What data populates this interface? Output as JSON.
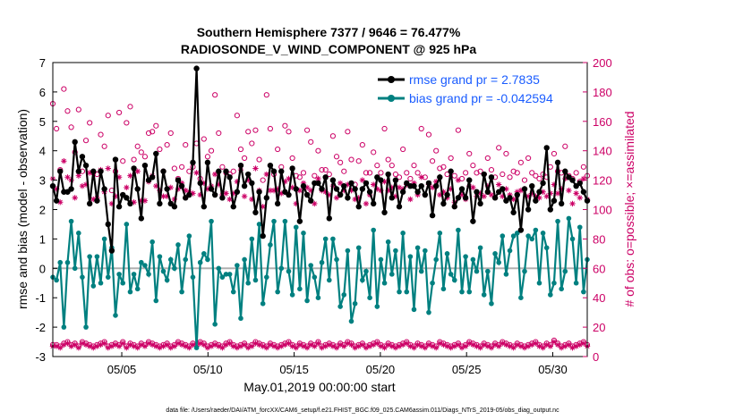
{
  "chart_data": {
    "type": "line",
    "title": "Southern Hemisphere 7377 / 9646 = 76.477%",
    "subtitle": "RADIOSONDE_V_WIND_COMPONENT @ 925 hPa",
    "xlabel": "May.01,2019 00:00:00 start",
    "ylabel_left": "rmse and bias (model - observation)",
    "ylabel_right": "# of obs: o=possible; ×=assimilated",
    "ylim_left": [
      -3,
      7
    ],
    "ylim_right": [
      0,
      200
    ],
    "xlim": [
      1,
      32
    ],
    "yticks_left": [
      "-3",
      "-2",
      "-1",
      "0",
      "1",
      "2",
      "3",
      "4",
      "5",
      "6",
      "7"
    ],
    "yticks_right": [
      "0",
      "20",
      "40",
      "60",
      "80",
      "100",
      "120",
      "140",
      "160",
      "180",
      "200"
    ],
    "xticks": [
      {
        "pos": 5,
        "label": "05/05"
      },
      {
        "pos": 10,
        "label": "05/10"
      },
      {
        "pos": 15,
        "label": "05/15"
      },
      {
        "pos": 20,
        "label": "05/20"
      },
      {
        "pos": 25,
        "label": "05/25"
      },
      {
        "pos": 30,
        "label": "05/30"
      }
    ],
    "legend": [
      {
        "name": "rmse grand pr = 2.7835",
        "color": "#000000"
      },
      {
        "name": "bias grand pr = -0.042594",
        "color": "#008080"
      }
    ],
    "footer": "data file: /Users/raeder/DAI/ATM_forcXX/CAM6_setup/f.e21.FHIST_BGC.f09_025.CAM6assim.011/Diags_NTrS_2019-05/obs_diag_output.nc",
    "rmse": [
      2.8,
      2.3,
      3.3,
      2.6,
      2.6,
      2.7,
      4.3,
      3.3,
      3.8,
      3.5,
      2.2,
      3.3,
      2.3,
      3.3,
      2.7,
      1.5,
      0.6,
      3.7,
      2.1,
      2.5,
      2.4,
      2.2,
      3.4,
      2.7,
      1.7,
      3.5,
      3.0,
      3.1,
      3.9,
      2.2,
      3.3,
      2.7,
      2.2,
      2.1,
      3.0,
      2.8,
      2.4,
      2.5,
      3.6,
      6.8,
      2.9,
      2.1,
      3.6,
      2.7,
      2.5,
      3.3,
      2.4,
      3.3,
      3.1,
      2.1,
      2.6,
      3.5,
      2.8,
      3.2,
      2.9,
      1.9,
      2.6,
      1.1,
      2.4,
      3.5,
      3.3,
      2.2,
      3.3,
      2.6,
      2.5,
      3.4,
      2.7,
      1.6,
      2.8,
      2.5,
      2.3,
      2.9,
      2.9,
      2.7,
      3.1,
      1.7,
      3.0,
      2.7,
      2.5,
      2.8,
      2.4,
      2.9,
      2.7,
      2.1,
      2.7,
      2.9,
      2.6,
      2.2,
      3.1,
      3.0,
      1.9,
      3.2,
      2.4,
      3.0,
      2.1,
      2.6,
      2.9,
      2.8,
      2.8,
      2.6,
      2.8,
      2.5,
      2.9,
      1.8,
      2.8,
      3.1,
      2.2,
      2.5,
      3.3,
      2.1,
      2.4,
      2.7,
      2.4,
      3.0,
      1.6,
      2.6,
      2.2,
      3.2,
      2.6,
      3.1,
      2.4,
      2.6,
      2.7,
      2.3,
      2.4,
      1.9,
      2.5,
      1.3,
      2.7,
      2.0,
      2.8,
      2.3,
      2.6,
      2.9,
      4.1,
      2.0,
      2.3,
      3.6,
      2.2,
      3.3,
      3.1,
      3.0,
      2.8,
      2.9,
      2.6,
      2.3
    ],
    "bias": [
      -0.3,
      -0.4,
      0.2,
      -2.0,
      0.2,
      1.6,
      0.0,
      1.2,
      -0.3,
      -2.0,
      0.4,
      -0.6,
      0.4,
      -0.5,
      1.0,
      -0.3,
      0.7,
      -1.6,
      -0.2,
      -0.5,
      1.5,
      -0.8,
      -0.2,
      -0.7,
      0.2,
      0.1,
      -0.2,
      0.9,
      -1.1,
      0.4,
      -0.1,
      -0.4,
      0.3,
      0.0,
      0.8,
      -0.8,
      0.3,
      1.1,
      -0.3,
      -2.7,
      0.2,
      0.5,
      0.3,
      1.6,
      -1.9,
      0.0,
      -0.3,
      -0.2,
      -0.2,
      -0.8,
      0.1,
      -1.7,
      0.3,
      -0.5,
      1.0,
      -0.4,
      1.5,
      -1.2,
      -0.3,
      0.8,
      1.6,
      -0.8,
      0.0,
      1.6,
      -0.1,
      -0.9,
      1.4,
      -0.7,
      1.2,
      -1.1,
      0.1,
      -0.3,
      -1.0,
      0.2,
      1.0,
      -0.4,
      1.0,
      0.3,
      -1.3,
      -0.9,
      0.6,
      -1.8,
      -1.2,
      0.7,
      -0.4,
      -0.1,
      -1.0,
      1.3,
      -1.3,
      0.3,
      -0.5,
      0.9,
      -0.2,
      0.6,
      -0.8,
      1.2,
      -0.8,
      0.4,
      -1.4,
      0.7,
      -0.1,
      0.6,
      -1.5,
      -0.5,
      0.3,
      1.2,
      -0.7,
      0.5,
      -0.2,
      -0.4,
      1.3,
      -0.8,
      0.4,
      -0.8,
      0.3,
      -0.1,
      0.7,
      -0.9,
      -0.1,
      -1.2,
      0.5,
      0.2,
      1.1,
      -0.2,
      0.6,
      1.1,
      1.2,
      -1.0,
      -0.1,
      1.1,
      1.0,
      1.3,
      -0.5,
      1.2,
      0.7,
      -0.9,
      -0.5,
      1.6,
      -0.7,
      -0.1,
      1.7,
      1.0,
      -0.5,
      1.4,
      -0.8,
      0.3
    ],
    "obs_possible": [
      172,
      155,
      127,
      182,
      167,
      156,
      139,
      168,
      126,
      147,
      159,
      125,
      124,
      151,
      143,
      164,
      113,
      126,
      166,
      133,
      159,
      170,
      134,
      143,
      139,
      136,
      152,
      153,
      157,
      141,
      126,
      144,
      152,
      128,
      121,
      129,
      144,
      126,
      129,
      145,
      121,
      148,
      136,
      140,
      178,
      152,
      129,
      125,
      124,
      126,
      164,
      141,
      135,
      153,
      145,
      154,
      134,
      120,
      178,
      155,
      124,
      141,
      129,
      157,
      153,
      135,
      123,
      122,
      125,
      154,
      146,
      123,
      140,
      127,
      127,
      124,
      150,
      136,
      132,
      126,
      153,
      134,
      117,
      133,
      144,
      125,
      125,
      139,
      130,
      125,
      155,
      134,
      130,
      124,
      122,
      141,
      125,
      121,
      130,
      125,
      155,
      122,
      151,
      133,
      140,
      128,
      129,
      124,
      135,
      123,
      154,
      121,
      125,
      138,
      130,
      125,
      126,
      124,
      135,
      127,
      122,
      142,
      124,
      138,
      122,
      126,
      125,
      132,
      120,
      135,
      125,
      123,
      121,
      124,
      122,
      129,
      138,
      126,
      125,
      143,
      123,
      121,
      125,
      119,
      129,
      123
    ],
    "obs_assimilated": [
      121,
      114,
      105,
      133,
      122,
      120,
      108,
      123,
      116,
      117,
      125,
      107,
      108,
      127,
      112,
      128,
      104,
      109,
      122,
      110,
      115,
      123,
      105,
      126,
      106,
      106,
      119,
      123,
      116,
      113,
      109,
      109,
      115,
      107,
      114,
      118,
      113,
      112,
      111,
      125,
      110,
      118,
      114,
      116,
      124,
      117,
      110,
      111,
      107,
      111,
      119,
      127,
      109,
      120,
      107,
      128,
      113,
      102,
      124,
      113,
      113,
      114,
      111,
      119,
      121,
      115,
      104,
      113,
      118,
      115,
      113,
      104,
      121,
      113,
      112,
      110,
      116,
      108,
      118,
      113,
      117,
      113,
      107,
      108,
      120,
      104,
      110,
      117,
      114,
      113,
      119,
      113,
      115,
      109,
      115,
      114,
      117,
      107,
      118,
      110,
      122,
      110,
      117,
      115,
      119,
      110,
      112,
      108,
      114,
      105,
      120,
      110,
      107,
      116,
      115,
      109,
      111,
      109,
      116,
      110,
      108,
      117,
      109,
      114,
      110,
      107,
      112,
      113,
      114,
      109,
      111,
      109,
      108,
      112,
      109,
      111,
      117,
      111,
      114,
      121,
      113,
      104,
      111,
      108,
      121,
      107
    ],
    "obs_low_possible": [
      8,
      8,
      7,
      9,
      10,
      8,
      9,
      7,
      10,
      9,
      8,
      7,
      8,
      9,
      10,
      7,
      8,
      9,
      8,
      10,
      7,
      9,
      8,
      7,
      9,
      8,
      10,
      9,
      8,
      7,
      8,
      9,
      7,
      8,
      10,
      9,
      8,
      7,
      9,
      8,
      10,
      9,
      7,
      8,
      9,
      8,
      7,
      9,
      10,
      8,
      7,
      8,
      9,
      7,
      8,
      10,
      9,
      8,
      7,
      9,
      8,
      7,
      8,
      9,
      10,
      8,
      7,
      9,
      8,
      7,
      9,
      8,
      10,
      7,
      8,
      9,
      8,
      7,
      9,
      8,
      10,
      9,
      7,
      8,
      9,
      7,
      8,
      9,
      10,
      8,
      7,
      9,
      8,
      7,
      8,
      9,
      10,
      8,
      7,
      9,
      8,
      7,
      9,
      8,
      7,
      10,
      9,
      8,
      7,
      8,
      9,
      7,
      8,
      10,
      9,
      8,
      7,
      9,
      8,
      7,
      9,
      8,
      10,
      9,
      8,
      7,
      9,
      8,
      7,
      8,
      9,
      10,
      8,
      7,
      9,
      8,
      11,
      9,
      7,
      8,
      9,
      7,
      8,
      9,
      10,
      8
    ],
    "obs_low_assimilated": [
      7,
      7,
      6,
      8,
      9,
      7,
      8,
      6,
      9,
      8,
      7,
      6,
      7,
      8,
      9,
      6,
      7,
      8,
      7,
      9,
      6,
      8,
      7,
      6,
      8,
      7,
      9,
      8,
      7,
      6,
      7,
      8,
      6,
      7,
      9,
      8,
      7,
      6,
      8,
      7,
      9,
      8,
      6,
      7,
      8,
      7,
      6,
      8,
      9,
      7,
      6,
      7,
      8,
      6,
      7,
      9,
      8,
      7,
      6,
      8,
      7,
      6,
      7,
      8,
      9,
      7,
      6,
      8,
      7,
      6,
      8,
      7,
      9,
      6,
      7,
      8,
      7,
      6,
      8,
      7,
      9,
      8,
      6,
      7,
      8,
      6,
      7,
      8,
      9,
      7,
      6,
      8,
      7,
      6,
      7,
      8,
      9,
      7,
      6,
      8,
      7,
      6,
      8,
      7,
      6,
      9,
      8,
      7,
      6,
      7,
      8,
      6,
      7,
      9,
      8,
      7,
      6,
      8,
      7,
      6,
      8,
      7,
      9,
      8,
      7,
      6,
      8,
      7,
      6,
      7,
      8,
      9,
      7,
      6,
      8,
      7,
      10,
      8,
      6,
      7,
      8,
      6,
      7,
      8,
      9,
      7
    ]
  }
}
